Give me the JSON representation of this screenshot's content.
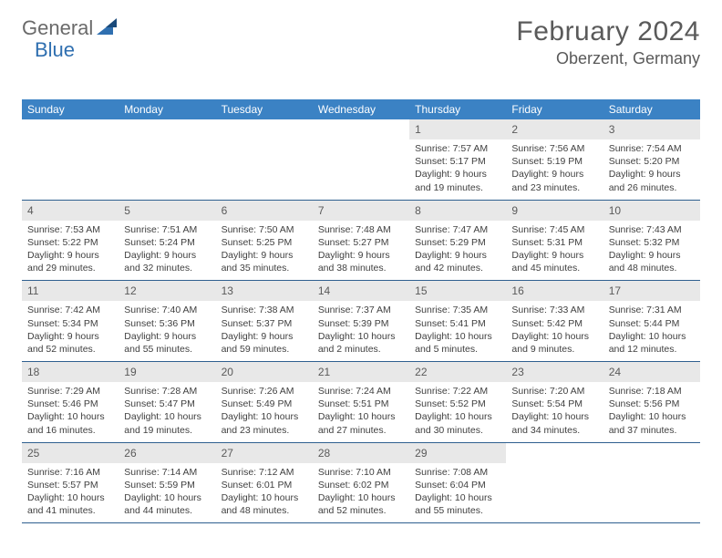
{
  "logo": {
    "text1": "General",
    "text2": "Blue"
  },
  "title": "February 2024",
  "location": "Oberzent, Germany",
  "dow": [
    "Sunday",
    "Monday",
    "Tuesday",
    "Wednesday",
    "Thursday",
    "Friday",
    "Saturday"
  ],
  "colors": {
    "header_bg": "#3b82c4",
    "header_text": "#ffffff",
    "daynum_bg": "#e8e8e8",
    "rule": "#2f5f8f",
    "body_text": "#404040",
    "title_text": "#5a5a5a",
    "logo_gray": "#6a6a6a",
    "logo_blue": "#2f6fb0"
  },
  "weeks": [
    [
      {
        "n": "",
        "sr": "",
        "ss": "",
        "dl1": "",
        "dl2": ""
      },
      {
        "n": "",
        "sr": "",
        "ss": "",
        "dl1": "",
        "dl2": ""
      },
      {
        "n": "",
        "sr": "",
        "ss": "",
        "dl1": "",
        "dl2": ""
      },
      {
        "n": "",
        "sr": "",
        "ss": "",
        "dl1": "",
        "dl2": ""
      },
      {
        "n": "1",
        "sr": "Sunrise: 7:57 AM",
        "ss": "Sunset: 5:17 PM",
        "dl1": "Daylight: 9 hours",
        "dl2": "and 19 minutes."
      },
      {
        "n": "2",
        "sr": "Sunrise: 7:56 AM",
        "ss": "Sunset: 5:19 PM",
        "dl1": "Daylight: 9 hours",
        "dl2": "and 23 minutes."
      },
      {
        "n": "3",
        "sr": "Sunrise: 7:54 AM",
        "ss": "Sunset: 5:20 PM",
        "dl1": "Daylight: 9 hours",
        "dl2": "and 26 minutes."
      }
    ],
    [
      {
        "n": "4",
        "sr": "Sunrise: 7:53 AM",
        "ss": "Sunset: 5:22 PM",
        "dl1": "Daylight: 9 hours",
        "dl2": "and 29 minutes."
      },
      {
        "n": "5",
        "sr": "Sunrise: 7:51 AM",
        "ss": "Sunset: 5:24 PM",
        "dl1": "Daylight: 9 hours",
        "dl2": "and 32 minutes."
      },
      {
        "n": "6",
        "sr": "Sunrise: 7:50 AM",
        "ss": "Sunset: 5:25 PM",
        "dl1": "Daylight: 9 hours",
        "dl2": "and 35 minutes."
      },
      {
        "n": "7",
        "sr": "Sunrise: 7:48 AM",
        "ss": "Sunset: 5:27 PM",
        "dl1": "Daylight: 9 hours",
        "dl2": "and 38 minutes."
      },
      {
        "n": "8",
        "sr": "Sunrise: 7:47 AM",
        "ss": "Sunset: 5:29 PM",
        "dl1": "Daylight: 9 hours",
        "dl2": "and 42 minutes."
      },
      {
        "n": "9",
        "sr": "Sunrise: 7:45 AM",
        "ss": "Sunset: 5:31 PM",
        "dl1": "Daylight: 9 hours",
        "dl2": "and 45 minutes."
      },
      {
        "n": "10",
        "sr": "Sunrise: 7:43 AM",
        "ss": "Sunset: 5:32 PM",
        "dl1": "Daylight: 9 hours",
        "dl2": "and 48 minutes."
      }
    ],
    [
      {
        "n": "11",
        "sr": "Sunrise: 7:42 AM",
        "ss": "Sunset: 5:34 PM",
        "dl1": "Daylight: 9 hours",
        "dl2": "and 52 minutes."
      },
      {
        "n": "12",
        "sr": "Sunrise: 7:40 AM",
        "ss": "Sunset: 5:36 PM",
        "dl1": "Daylight: 9 hours",
        "dl2": "and 55 minutes."
      },
      {
        "n": "13",
        "sr": "Sunrise: 7:38 AM",
        "ss": "Sunset: 5:37 PM",
        "dl1": "Daylight: 9 hours",
        "dl2": "and 59 minutes."
      },
      {
        "n": "14",
        "sr": "Sunrise: 7:37 AM",
        "ss": "Sunset: 5:39 PM",
        "dl1": "Daylight: 10 hours",
        "dl2": "and 2 minutes."
      },
      {
        "n": "15",
        "sr": "Sunrise: 7:35 AM",
        "ss": "Sunset: 5:41 PM",
        "dl1": "Daylight: 10 hours",
        "dl2": "and 5 minutes."
      },
      {
        "n": "16",
        "sr": "Sunrise: 7:33 AM",
        "ss": "Sunset: 5:42 PM",
        "dl1": "Daylight: 10 hours",
        "dl2": "and 9 minutes."
      },
      {
        "n": "17",
        "sr": "Sunrise: 7:31 AM",
        "ss": "Sunset: 5:44 PM",
        "dl1": "Daylight: 10 hours",
        "dl2": "and 12 minutes."
      }
    ],
    [
      {
        "n": "18",
        "sr": "Sunrise: 7:29 AM",
        "ss": "Sunset: 5:46 PM",
        "dl1": "Daylight: 10 hours",
        "dl2": "and 16 minutes."
      },
      {
        "n": "19",
        "sr": "Sunrise: 7:28 AM",
        "ss": "Sunset: 5:47 PM",
        "dl1": "Daylight: 10 hours",
        "dl2": "and 19 minutes."
      },
      {
        "n": "20",
        "sr": "Sunrise: 7:26 AM",
        "ss": "Sunset: 5:49 PM",
        "dl1": "Daylight: 10 hours",
        "dl2": "and 23 minutes."
      },
      {
        "n": "21",
        "sr": "Sunrise: 7:24 AM",
        "ss": "Sunset: 5:51 PM",
        "dl1": "Daylight: 10 hours",
        "dl2": "and 27 minutes."
      },
      {
        "n": "22",
        "sr": "Sunrise: 7:22 AM",
        "ss": "Sunset: 5:52 PM",
        "dl1": "Daylight: 10 hours",
        "dl2": "and 30 minutes."
      },
      {
        "n": "23",
        "sr": "Sunrise: 7:20 AM",
        "ss": "Sunset: 5:54 PM",
        "dl1": "Daylight: 10 hours",
        "dl2": "and 34 minutes."
      },
      {
        "n": "24",
        "sr": "Sunrise: 7:18 AM",
        "ss": "Sunset: 5:56 PM",
        "dl1": "Daylight: 10 hours",
        "dl2": "and 37 minutes."
      }
    ],
    [
      {
        "n": "25",
        "sr": "Sunrise: 7:16 AM",
        "ss": "Sunset: 5:57 PM",
        "dl1": "Daylight: 10 hours",
        "dl2": "and 41 minutes."
      },
      {
        "n": "26",
        "sr": "Sunrise: 7:14 AM",
        "ss": "Sunset: 5:59 PM",
        "dl1": "Daylight: 10 hours",
        "dl2": "and 44 minutes."
      },
      {
        "n": "27",
        "sr": "Sunrise: 7:12 AM",
        "ss": "Sunset: 6:01 PM",
        "dl1": "Daylight: 10 hours",
        "dl2": "and 48 minutes."
      },
      {
        "n": "28",
        "sr": "Sunrise: 7:10 AM",
        "ss": "Sunset: 6:02 PM",
        "dl1": "Daylight: 10 hours",
        "dl2": "and 52 minutes."
      },
      {
        "n": "29",
        "sr": "Sunrise: 7:08 AM",
        "ss": "Sunset: 6:04 PM",
        "dl1": "Daylight: 10 hours",
        "dl2": "and 55 minutes."
      },
      {
        "n": "",
        "sr": "",
        "ss": "",
        "dl1": "",
        "dl2": ""
      },
      {
        "n": "",
        "sr": "",
        "ss": "",
        "dl1": "",
        "dl2": ""
      }
    ]
  ]
}
